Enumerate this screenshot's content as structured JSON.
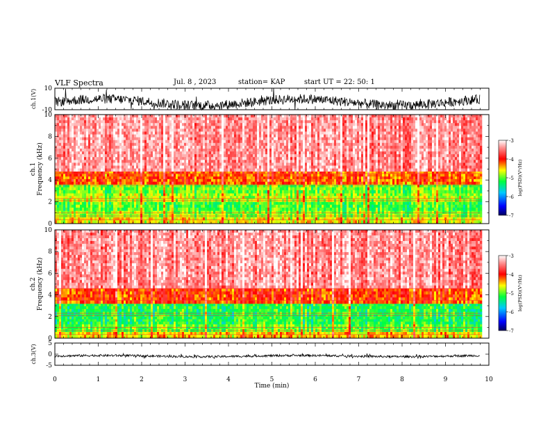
{
  "header": {
    "title": "VLF Spectra",
    "date": "Jul. 8 , 2023",
    "station": "station= KAP",
    "start": "start UT = 22: 50: 1"
  },
  "chart_data": [
    {
      "type": "line",
      "panel": "ch1-waveform",
      "ylabel": "ch.1(V)",
      "ylim": [
        -10,
        10
      ],
      "yticks": [
        "10",
        "-10"
      ],
      "xlim": [
        0,
        10
      ],
      "series_color": "#000000",
      "description_values": {
        "x_end_min": 9.8,
        "typical_range": [
          -8,
          2
        ]
      }
    },
    {
      "type": "heatmap",
      "panel": "ch1-spectrogram",
      "ylabel": "ch.1 Frequency (kHz)",
      "ylim": [
        0,
        10
      ],
      "yticks": [
        "0",
        "2",
        "4",
        "6",
        "8",
        "10"
      ],
      "xlim": [
        0,
        10
      ],
      "x_end_min": 9.8,
      "colorbar": {
        "label": "log(PSD)(V²/Hz)",
        "range": [
          -7,
          -3
        ],
        "ticks": [
          "-3",
          "-4",
          "-5",
          "-6",
          "-7"
        ]
      },
      "bands": [
        {
          "from_khz": 0.0,
          "to_khz": 0.6,
          "level": -4.6
        },
        {
          "from_khz": 0.6,
          "to_khz": 1.2,
          "level": -4.9
        },
        {
          "from_khz": 1.2,
          "to_khz": 2.0,
          "level": -5.1
        },
        {
          "from_khz": 2.0,
          "to_khz": 2.8,
          "level": -4.8
        },
        {
          "from_khz": 2.8,
          "to_khz": 3.6,
          "level": -5.0
        },
        {
          "from_khz": 3.6,
          "to_khz": 4.8,
          "level": -4.2
        },
        {
          "from_khz": 4.8,
          "to_khz": 10.0,
          "level": -3.4
        }
      ]
    },
    {
      "type": "heatmap",
      "panel": "ch2-spectrogram",
      "ylabel": "ch.2 Frequency (kHz)",
      "ylim": [
        0,
        10
      ],
      "yticks": [
        "0",
        "2",
        "4",
        "6",
        "8",
        "10"
      ],
      "xlim": [
        0,
        10
      ],
      "x_end_min": 9.8,
      "colorbar": {
        "label": "log(PSD)(V²/Hz)",
        "range": [
          -7,
          -3
        ],
        "ticks": [
          "-3",
          "-4",
          "-5",
          "-6",
          "-7"
        ]
      },
      "bands": [
        {
          "from_khz": 0.0,
          "to_khz": 0.6,
          "level": -4.5
        },
        {
          "from_khz": 0.6,
          "to_khz": 1.3,
          "level": -5.0
        },
        {
          "from_khz": 1.3,
          "to_khz": 2.2,
          "level": -5.2
        },
        {
          "from_khz": 2.2,
          "to_khz": 3.2,
          "level": -5.2
        },
        {
          "from_khz": 3.2,
          "to_khz": 4.6,
          "level": -4.1
        },
        {
          "from_khz": 4.6,
          "to_khz": 10.0,
          "level": -3.4
        }
      ]
    },
    {
      "type": "line",
      "panel": "ch3-waveform",
      "ylabel": "ch.3(V)",
      "ylim": [
        -5,
        5
      ],
      "yticks": [
        "5",
        "0",
        "-5"
      ],
      "xlim": [
        0,
        10
      ],
      "series_color": "#000000",
      "description_values": {
        "x_end_min": 9.8,
        "typical_range": [
          -1.3,
          -0.4
        ]
      }
    }
  ],
  "xaxis": {
    "label": "Time (min)",
    "ticks": [
      "0",
      "1",
      "2",
      "3",
      "4",
      "5",
      "6",
      "7",
      "8",
      "9",
      "10"
    ]
  }
}
